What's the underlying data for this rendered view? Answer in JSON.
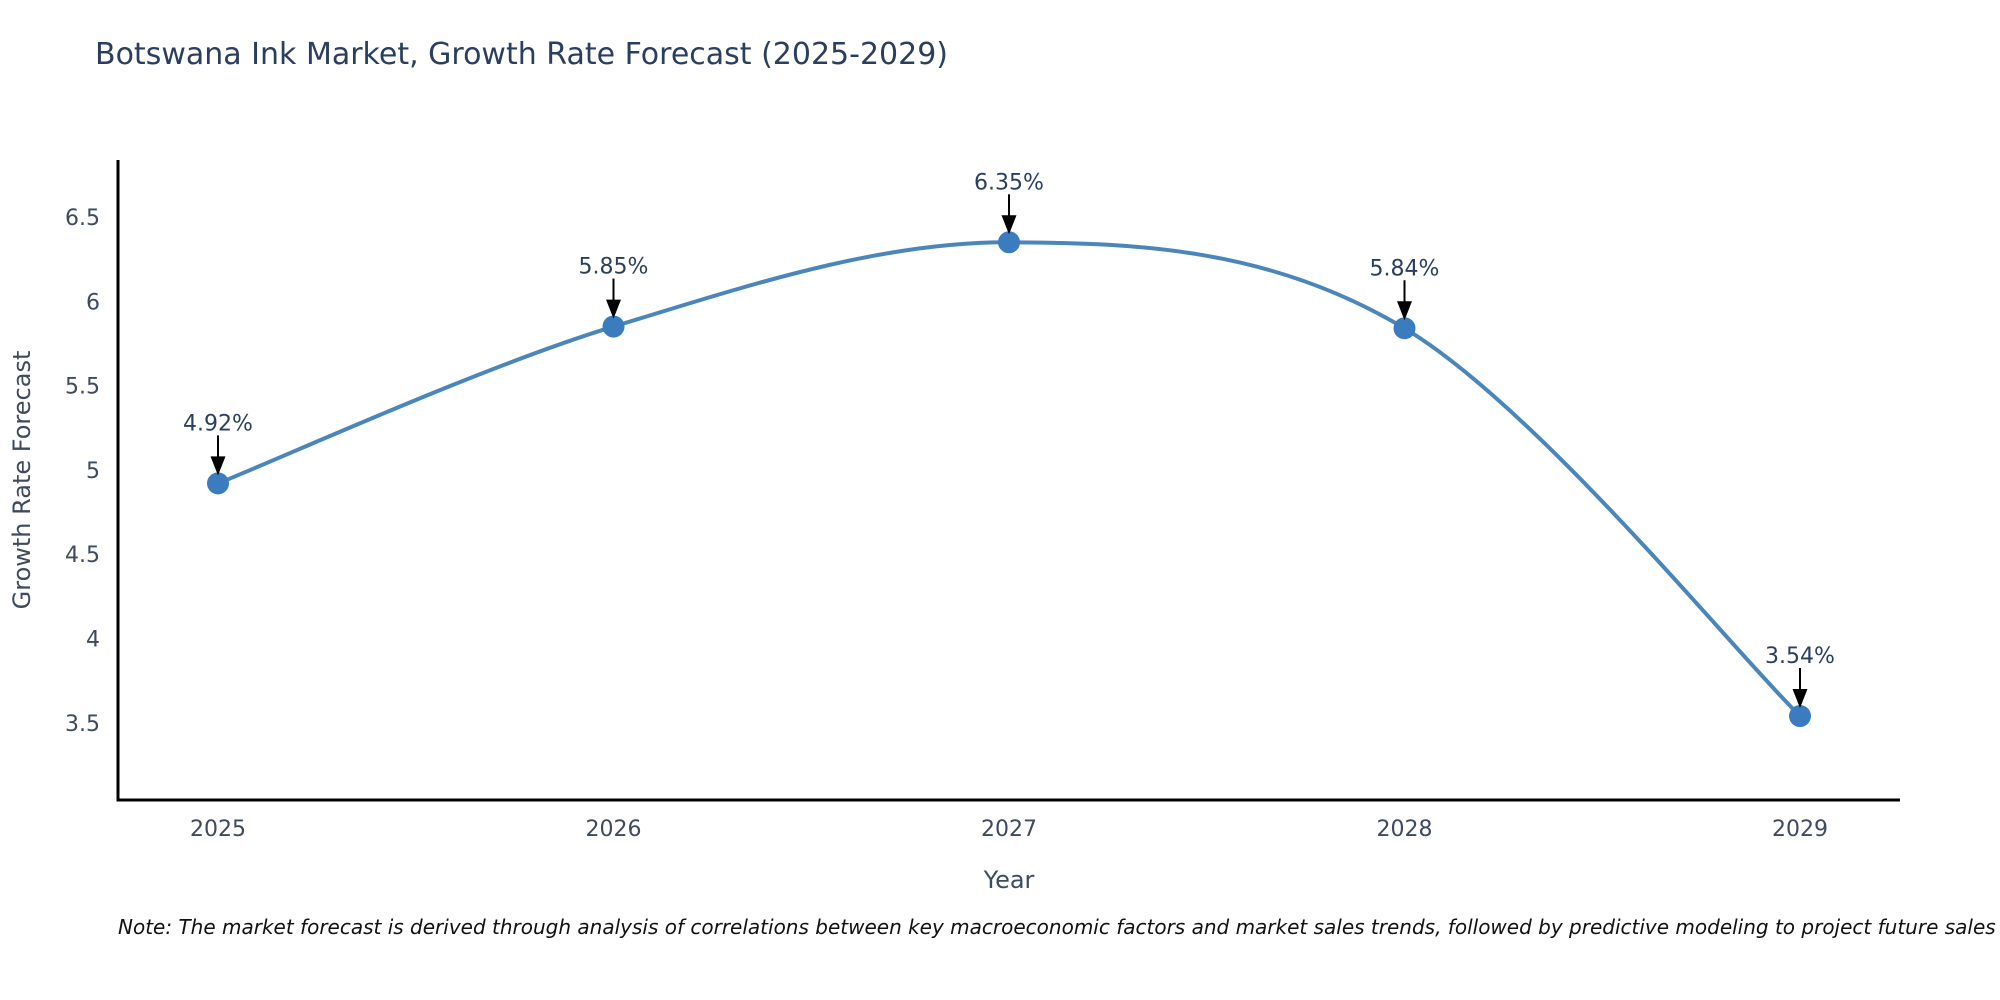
{
  "chart_data": {
    "type": "line",
    "title": "Botswana Ink Market, Growth Rate Forecast (2025-2029)",
    "xlabel": "Year",
    "ylabel": "Growth Rate Forecast",
    "categories": [
      "2025",
      "2026",
      "2027",
      "2028",
      "2029"
    ],
    "series": [
      {
        "name": "Growth Rate Forecast",
        "values": [
          4.92,
          5.85,
          6.35,
          5.84,
          3.54
        ]
      }
    ],
    "point_labels": [
      "4.92%",
      "5.85%",
      "6.35%",
      "5.84%",
      "3.54%"
    ],
    "y_ticks": [
      6.5,
      6,
      5.5,
      5,
      4.5,
      4,
      3.5
    ],
    "ylim": [
      3.042,
      6.838
    ],
    "line_shape": "spline",
    "grid": false,
    "legend_position": "none",
    "colors": {
      "line": "#4a86ba",
      "marker": "#3a7cbd",
      "axis": "#000000",
      "title": "#2a3f5f",
      "tick_label": "#3e4a5e",
      "axis_label": "#3e4a5e",
      "annotation_text": "#2a3f5f",
      "arrow": "#000000",
      "background": "#ffffff"
    }
  },
  "note": {
    "text": "Note: The market forecast is derived through analysis of correlations between key macroeconomic factors and market sales trends, followed by predictive modeling to project future sales"
  }
}
